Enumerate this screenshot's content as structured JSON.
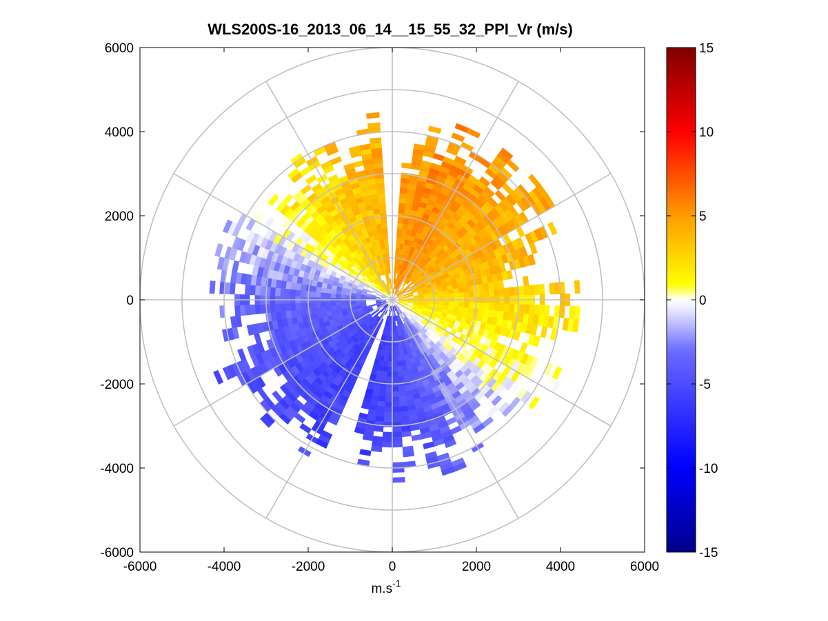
{
  "chart_data": {
    "type": "heatmap",
    "subtype": "polar-ppi",
    "title": "WLS200S-16_2013_06_14__15_55_32_PPI_Vr (m/s)",
    "xlabel": "m.s",
    "xlabel_superscript": "-1",
    "ylabel": "",
    "xlim": [
      -6000,
      6000
    ],
    "ylim": [
      -6000,
      6000
    ],
    "xticks": [
      -6000,
      -4000,
      -2000,
      0,
      2000,
      4000,
      6000
    ],
    "yticks": [
      6000,
      4000,
      2000,
      0,
      -2000,
      -4000,
      -6000
    ],
    "xtick_labels": [
      "-6000",
      "-4000",
      "-2000",
      "0",
      "2000",
      "4000",
      "6000"
    ],
    "ytick_labels": [
      "6000",
      "4000",
      "2000",
      "0",
      "-2000",
      "-4000",
      "-6000"
    ],
    "polar_grid": {
      "range_rings_m": [
        1000,
        2000,
        3000,
        4000,
        5000,
        6000
      ],
      "spoke_angle_step_deg": 30,
      "grid_color": "#c0c0c0"
    },
    "colorbar": {
      "range": [
        -15,
        15
      ],
      "ticks": [
        15,
        10,
        5,
        0,
        -5,
        -10,
        -15
      ],
      "tick_labels": [
        "15",
        "10",
        "5",
        "0",
        "-5",
        "-10",
        "-15"
      ],
      "colormap": "blue-white-yellow-red",
      "color_stops": [
        "#00008c",
        "#0000ff",
        "#6b6bff",
        "#e8e8ff",
        "#ffffff",
        "#ffff00",
        "#ff9900",
        "#ff0000",
        "#800000"
      ]
    },
    "data_extent": {
      "max_range_m": 4200,
      "gap_azimuths_deg": [
        0,
        200
      ],
      "velocity_sectors": [
        {
          "azimuth_deg": 0,
          "vr": 4.5
        },
        {
          "azimuth_deg": 20,
          "vr": 5.5
        },
        {
          "azimuth_deg": 45,
          "vr": 4.5
        },
        {
          "azimuth_deg": 70,
          "vr": 3.8
        },
        {
          "azimuth_deg": 90,
          "vr": 2.5
        },
        {
          "azimuth_deg": 110,
          "vr": 1.0
        },
        {
          "azimuth_deg": 125,
          "vr": 0.3
        },
        {
          "azimuth_deg": 140,
          "vr": -1.5
        },
        {
          "azimuth_deg": 165,
          "vr": -4.5
        },
        {
          "azimuth_deg": 195,
          "vr": -6.0
        },
        {
          "azimuth_deg": 215,
          "vr": -5.5
        },
        {
          "azimuth_deg": 245,
          "vr": -4.5
        },
        {
          "azimuth_deg": 270,
          "vr": -3.5
        },
        {
          "azimuth_deg": 290,
          "vr": -1.5
        },
        {
          "azimuth_deg": 305,
          "vr": 0.5
        },
        {
          "azimuth_deg": 325,
          "vr": 2.5
        },
        {
          "azimuth_deg": 345,
          "vr": 3.5
        },
        {
          "azimuth_deg": 360,
          "vr": 4.5
        }
      ]
    }
  }
}
